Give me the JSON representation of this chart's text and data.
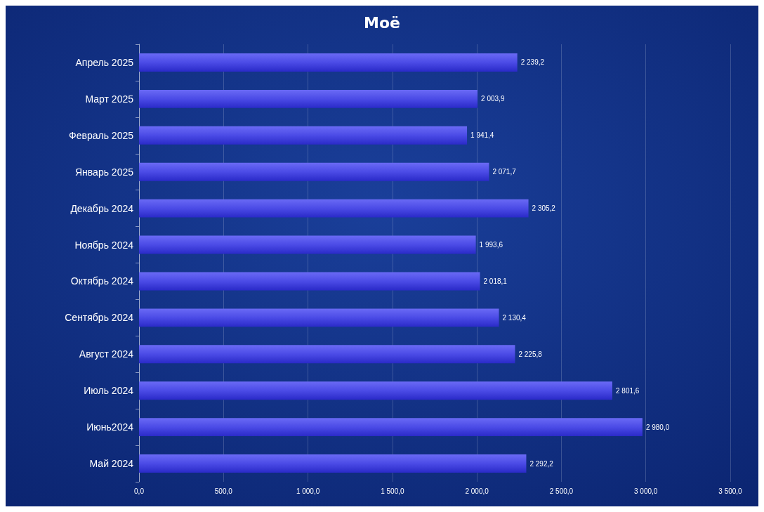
{
  "chart_data": {
    "type": "bar",
    "orientation": "horizontal",
    "title": "Моё",
    "categories": [
      "Апрель 2025",
      "Март 2025",
      "Февраль 2025",
      "Январь 2025",
      "Декабрь 2024",
      "Ноябрь 2024",
      "Октябрь 2024",
      "Сентябрь 2024",
      "Август 2024",
      "Июль 2024",
      "Июнь2024",
      "Май 2024"
    ],
    "values": [
      2239.2,
      2003.9,
      1941.4,
      2071.7,
      2305.2,
      1993.6,
      2018.1,
      2130.4,
      2225.8,
      2801.6,
      2980.0,
      2292.2
    ],
    "value_labels": [
      "2 239,2",
      "2 003,9",
      "1 941,4",
      "2 071,7",
      "2 305,2",
      "1 993,6",
      "2 018,1",
      "2 130,4",
      "2 225,8",
      "2 801,6",
      "2 980,0",
      "2 292,2"
    ],
    "color": "#4b4be6",
    "xlim": [
      0,
      3500
    ],
    "xticks": [
      {
        "value": 0,
        "label": "0,0"
      },
      {
        "value": 500,
        "label": "500,0"
      },
      {
        "value": 1000,
        "label": "1 000,0"
      },
      {
        "value": 1500,
        "label": "1 500,0"
      },
      {
        "value": 2000,
        "label": "2 000,0"
      },
      {
        "value": 2500,
        "label": "2 500,0"
      },
      {
        "value": 3000,
        "label": "3 000,0"
      },
      {
        "value": 3500,
        "label": "3 500,0"
      }
    ],
    "grid": "x"
  }
}
